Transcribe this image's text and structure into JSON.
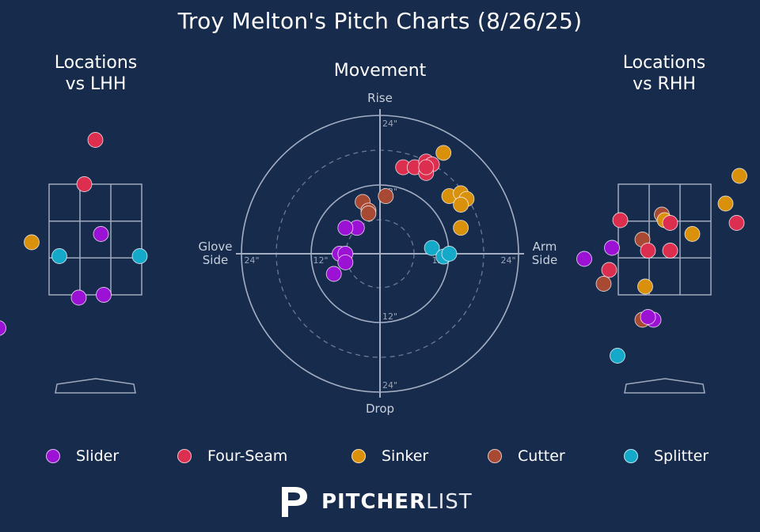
{
  "title": "Troy Melton's Pitch Charts (8/26/25)",
  "panels": {
    "lhh_title_line1": "Locations",
    "lhh_title_line2": "vs LHH",
    "movement_title": "Movement",
    "rhh_title_line1": "Locations",
    "rhh_title_line2": "vs RHH"
  },
  "movement_labels": {
    "rise": "Rise",
    "drop": "Drop",
    "glove_side_1": "Glove",
    "glove_side_2": "Side",
    "arm_side_1": "Arm",
    "arm_side_2": "Side",
    "ring_12": "12\"",
    "ring_24": "24\""
  },
  "colors": {
    "Slider": "#9b12d4",
    "Four-Seam": "#dc2e4e",
    "Sinker": "#d9900b",
    "Cutter": "#a84a33",
    "Splitter": "#14a8c9"
  },
  "legend": [
    {
      "name": "Slider",
      "color": "#9b12d4"
    },
    {
      "name": "Four-Seam",
      "color": "#dc2e4e"
    },
    {
      "name": "Sinker",
      "color": "#d9900b"
    },
    {
      "name": "Cutter",
      "color": "#a84a33"
    },
    {
      "name": "Splitter",
      "color": "#14a8c9"
    }
  ],
  "logo": {
    "bold": "PITCHER",
    "light": "LIST",
    "mark": "P"
  },
  "chart_data": [
    {
      "type": "scatter",
      "title": "Locations vs LHH",
      "points": [
        {
          "pitch": "Four-Seam",
          "x": 0.0,
          "y": 4.3
        },
        {
          "pitch": "Four-Seam",
          "x": -0.2,
          "y": 3.5
        },
        {
          "pitch": "Slider",
          "x": 0.1,
          "y": 2.6
        },
        {
          "pitch": "Sinker",
          "x": -1.15,
          "y": 2.45
        },
        {
          "pitch": "Splitter",
          "x": -0.65,
          "y": 2.2
        },
        {
          "pitch": "Splitter",
          "x": 0.8,
          "y": 2.2
        },
        {
          "pitch": "Slider",
          "x": 0.15,
          "y": 1.5
        },
        {
          "pitch": "Slider",
          "x": -0.3,
          "y": 1.45
        },
        {
          "pitch": "Slider",
          "x": -1.75,
          "y": 0.9
        }
      ]
    },
    {
      "type": "scatter",
      "title": "Movement",
      "xlabel": "Arm Side",
      "ylabel": "Rise",
      "points": [
        {
          "pitch": "Four-Seam",
          "x": 4,
          "y": 15
        },
        {
          "pitch": "Four-Seam",
          "x": 6,
          "y": 15
        },
        {
          "pitch": "Four-Seam",
          "x": 8,
          "y": 16
        },
        {
          "pitch": "Four-Seam",
          "x": 9,
          "y": 15.5
        },
        {
          "pitch": "Four-Seam",
          "x": 8,
          "y": 14
        },
        {
          "pitch": "Four-Seam",
          "x": 8,
          "y": 15
        },
        {
          "pitch": "Sinker",
          "x": 11,
          "y": 17.5
        },
        {
          "pitch": "Sinker",
          "x": 12,
          "y": 10
        },
        {
          "pitch": "Sinker",
          "x": 14,
          "y": 10.5
        },
        {
          "pitch": "Sinker",
          "x": 15,
          "y": 9.5
        },
        {
          "pitch": "Sinker",
          "x": 14,
          "y": 8.5
        },
        {
          "pitch": "Sinker",
          "x": 14,
          "y": 4.5
        },
        {
          "pitch": "Cutter",
          "x": 1,
          "y": 10
        },
        {
          "pitch": "Cutter",
          "x": -3,
          "y": 9
        },
        {
          "pitch": "Cutter",
          "x": -2,
          "y": 7.5
        },
        {
          "pitch": "Cutter",
          "x": -2,
          "y": 7
        },
        {
          "pitch": "Slider",
          "x": -4,
          "y": 4.5
        },
        {
          "pitch": "Slider",
          "x": -6,
          "y": 4.5
        },
        {
          "pitch": "Slider",
          "x": -7,
          "y": 0
        },
        {
          "pitch": "Slider",
          "x": -6,
          "y": 0
        },
        {
          "pitch": "Slider",
          "x": -6,
          "y": -1.5
        },
        {
          "pitch": "Slider",
          "x": -8,
          "y": -3.5
        },
        {
          "pitch": "Splitter",
          "x": 9,
          "y": 1
        },
        {
          "pitch": "Splitter",
          "x": 11,
          "y": -0.5
        },
        {
          "pitch": "Splitter",
          "x": 12,
          "y": 0
        }
      ]
    },
    {
      "type": "scatter",
      "title": "Locations vs RHH",
      "points": [
        {
          "pitch": "Sinker",
          "x": 1.35,
          "y": 3.65
        },
        {
          "pitch": "Sinker",
          "x": 1.1,
          "y": 3.15
        },
        {
          "pitch": "Cutter",
          "x": -0.05,
          "y": 2.95
        },
        {
          "pitch": "Sinker",
          "x": 0.0,
          "y": 2.85
        },
        {
          "pitch": "Four-Seam",
          "x": 0.1,
          "y": 2.8
        },
        {
          "pitch": "Four-Seam",
          "x": -0.8,
          "y": 2.85
        },
        {
          "pitch": "Four-Seam",
          "x": 1.3,
          "y": 2.8
        },
        {
          "pitch": "Sinker",
          "x": 0.5,
          "y": 2.6
        },
        {
          "pitch": "Cutter",
          "x": -0.4,
          "y": 2.5
        },
        {
          "pitch": "Slider",
          "x": -0.95,
          "y": 2.35
        },
        {
          "pitch": "Four-Seam",
          "x": -0.3,
          "y": 2.3
        },
        {
          "pitch": "Four-Seam",
          "x": 0.1,
          "y": 2.3
        },
        {
          "pitch": "Slider",
          "x": -1.45,
          "y": 2.15
        },
        {
          "pitch": "Four-Seam",
          "x": -1.0,
          "y": 1.95
        },
        {
          "pitch": "Cutter",
          "x": -1.1,
          "y": 1.7
        },
        {
          "pitch": "Sinker",
          "x": -0.35,
          "y": 1.65
        },
        {
          "pitch": "Slider",
          "x": -0.2,
          "y": 1.05
        },
        {
          "pitch": "Cutter",
          "x": -0.4,
          "y": 1.05
        },
        {
          "pitch": "Slider",
          "x": -0.3,
          "y": 1.1
        },
        {
          "pitch": "Splitter",
          "x": -0.85,
          "y": 0.4
        }
      ]
    }
  ]
}
